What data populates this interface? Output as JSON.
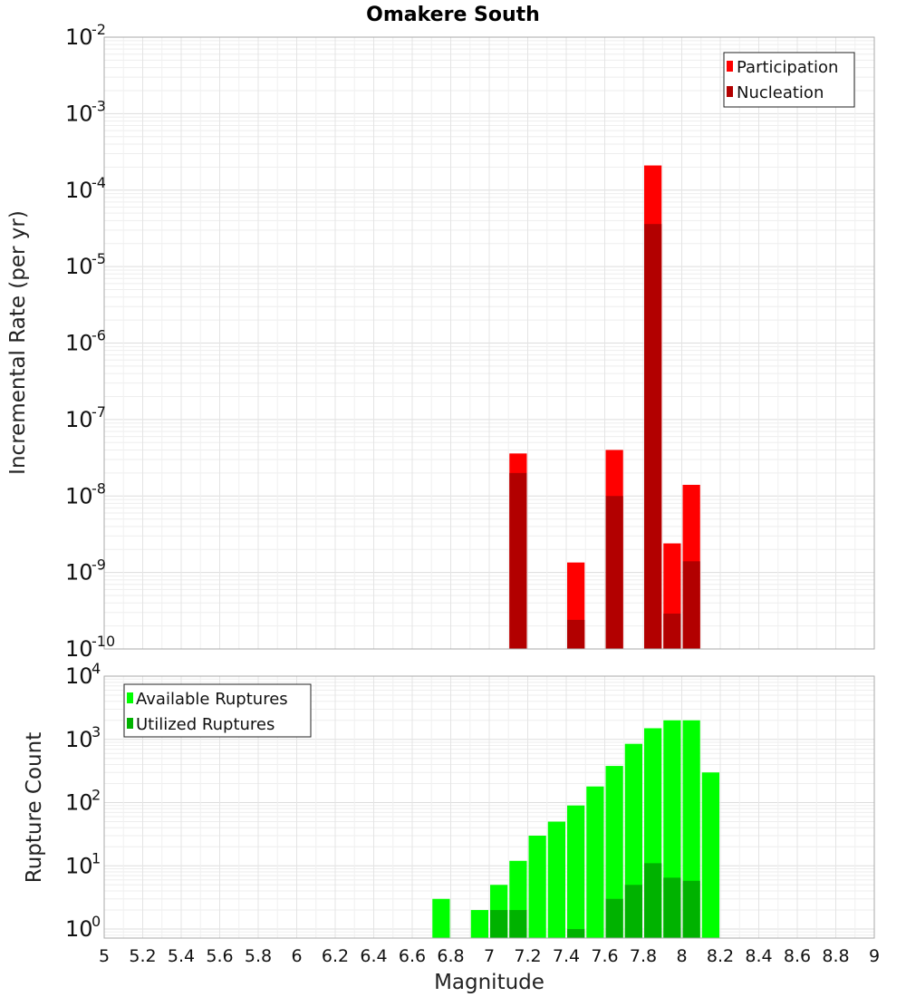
{
  "chart_data": [
    {
      "type": "bar",
      "title": "Omakere South",
      "ylabel": "Incremental Rate (per yr)",
      "xlabel": "",
      "xlim": [
        5,
        9
      ],
      "ylim": [
        1e-10,
        0.01
      ],
      "yscale": "log",
      "ytick_exponents": [
        -10,
        -9,
        -8,
        -7,
        -6,
        -5,
        -4,
        -3,
        -2
      ],
      "grid": true,
      "legend_position": "top-right",
      "bar_width": 0.1,
      "series": [
        {
          "name": "Participation",
          "color": "#ff0000",
          "x": [
            7.1,
            7.4,
            7.6,
            7.8,
            7.9,
            8.0
          ],
          "values": [
            3.6e-08,
            1.35e-09,
            4e-08,
            0.00021,
            2.4e-09,
            1.4e-08
          ]
        },
        {
          "name": "Nucleation",
          "color": "#b20000",
          "x": [
            7.1,
            7.4,
            7.6,
            7.8,
            7.9,
            8.0
          ],
          "values": [
            2e-08,
            2.4e-10,
            1e-08,
            3.6e-05,
            2.9e-10,
            1.4e-09
          ]
        }
      ]
    },
    {
      "type": "bar",
      "ylabel": "Rupture Count",
      "xlabel": "Magnitude",
      "xlim": [
        5,
        9
      ],
      "xticks": [
        "5",
        "5.2",
        "5.4",
        "5.6",
        "5.8",
        "6",
        "6.2",
        "6.4",
        "6.6",
        "6.8",
        "7",
        "7.2",
        "7.4",
        "7.6",
        "7.8",
        "8",
        "8.2",
        "8.4",
        "8.6",
        "8.8",
        "9"
      ],
      "ylim": [
        0.72,
        10000
      ],
      "yscale": "log",
      "ytick_exponents": [
        0,
        1,
        2,
        3,
        4
      ],
      "grid": true,
      "legend_position": "top-left",
      "bar_width": 0.1,
      "series": [
        {
          "name": "Available Ruptures",
          "color": "#00ff00",
          "x": [
            6.7,
            6.9,
            7.0,
            7.1,
            7.2,
            7.3,
            7.4,
            7.5,
            7.6,
            7.7,
            7.8,
            7.9,
            8.0,
            8.1
          ],
          "values": [
            3,
            2,
            5,
            12,
            30,
            50,
            90,
            180,
            380,
            850,
            1500,
            2000,
            2000,
            300
          ]
        },
        {
          "name": "Utilized Ruptures",
          "color": "#00b200",
          "x": [
            7.0,
            7.1,
            7.4,
            7.6,
            7.7,
            7.8,
            7.9,
            8.0
          ],
          "values": [
            2,
            2,
            1,
            3,
            5,
            11,
            6.5,
            5.8
          ]
        }
      ]
    }
  ]
}
